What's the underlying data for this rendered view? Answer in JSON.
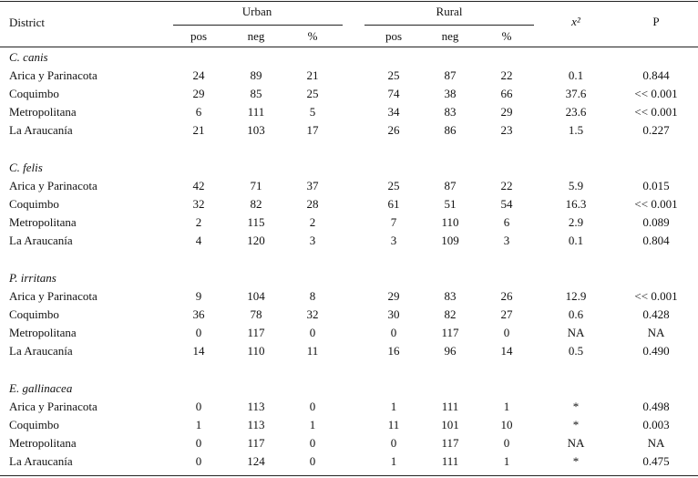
{
  "header": {
    "district": "District",
    "groups": [
      "Urban",
      "Rural"
    ],
    "subheaders": [
      "pos",
      "neg",
      "%",
      "pos",
      "neg",
      "%"
    ],
    "chi": "x²",
    "p": "P"
  },
  "sections": [
    {
      "title": "C. canis",
      "rows": [
        [
          "Arica y Parinacota",
          "24",
          "89",
          "21",
          "25",
          "87",
          "22",
          "0.1",
          "0.844"
        ],
        [
          "Coquimbo",
          "29",
          "85",
          "25",
          "74",
          "38",
          "66",
          "37.6",
          "<< 0.001"
        ],
        [
          "Metropolitana",
          "6",
          "111",
          "5",
          "34",
          "83",
          "29",
          "23.6",
          "<< 0.001"
        ],
        [
          "La Araucanía",
          "21",
          "103",
          "17",
          "26",
          "86",
          "23",
          "1.5",
          "0.227"
        ]
      ]
    },
    {
      "title": "C. felis",
      "rows": [
        [
          "Arica y Parinacota",
          "42",
          "71",
          "37",
          "25",
          "87",
          "22",
          "5.9",
          "0.015"
        ],
        [
          "Coquimbo",
          "32",
          "82",
          "28",
          "61",
          "51",
          "54",
          "16.3",
          "<< 0.001"
        ],
        [
          "Metropolitana",
          "2",
          "115",
          "2",
          "7",
          "110",
          "6",
          "2.9",
          "0.089"
        ],
        [
          "La Araucanía",
          "4",
          "120",
          "3",
          "3",
          "109",
          "3",
          "0.1",
          "0.804"
        ]
      ]
    },
    {
      "title": "P. irritans",
      "rows": [
        [
          "Arica y Parinacota",
          "9",
          "104",
          "8",
          "29",
          "83",
          "26",
          "12.9",
          "<< 0.001"
        ],
        [
          "Coquimbo",
          "36",
          "78",
          "32",
          "30",
          "82",
          "27",
          "0.6",
          "0.428"
        ],
        [
          "Metropolitana",
          "0",
          "117",
          "0",
          "0",
          "117",
          "0",
          "NA",
          "NA"
        ],
        [
          "La Araucanía",
          "14",
          "110",
          "11",
          "16",
          "96",
          "14",
          "0.5",
          "0.490"
        ]
      ]
    },
    {
      "title": "E. gallinacea",
      "rows": [
        [
          "Arica y Parinacota",
          "0",
          "113",
          "0",
          "1",
          "111",
          "1",
          "*",
          "0.498"
        ],
        [
          "Coquimbo",
          "1",
          "113",
          "1",
          "11",
          "101",
          "10",
          "*",
          "0.003"
        ],
        [
          "Metropolitana",
          "0",
          "117",
          "0",
          "0",
          "117",
          "0",
          "NA",
          "NA"
        ],
        [
          "La Araucanía",
          "0",
          "124",
          "0",
          "1",
          "111",
          "1",
          "*",
          "0.475"
        ]
      ]
    }
  ]
}
